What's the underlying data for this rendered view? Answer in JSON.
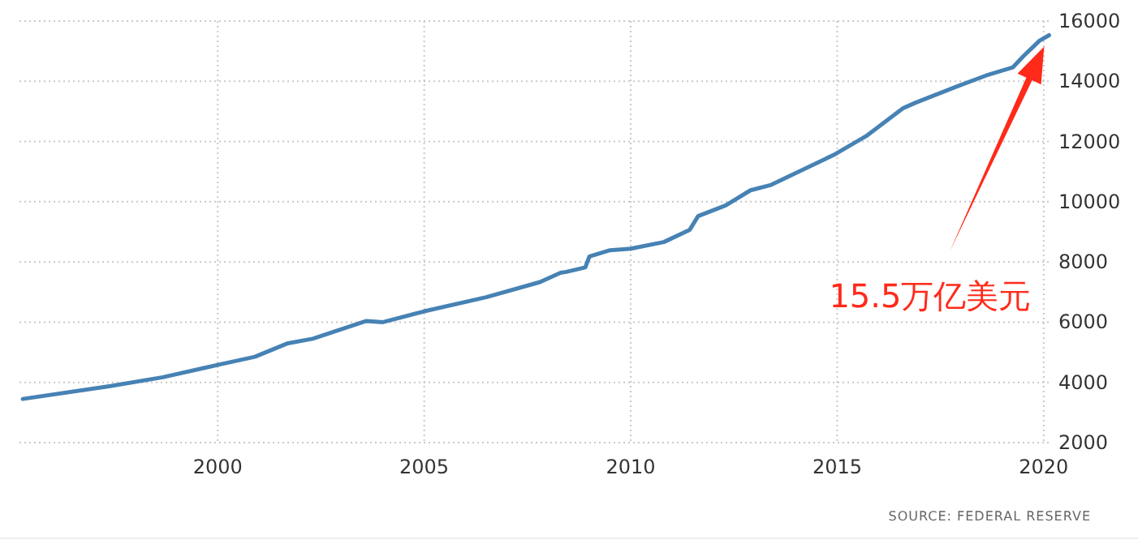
{
  "chart_data": {
    "type": "line",
    "x": [
      1995.28,
      1997.37,
      1998.67,
      2000.0,
      2000.9,
      2001.7,
      2002.3,
      2003.6,
      2004.0,
      2005.0,
      2006.5,
      2007.8,
      2008.3,
      2008.44,
      2008.9,
      2009.0,
      2009.5,
      2010.0,
      2010.8,
      2011.43,
      2011.63,
      2012.3,
      2012.9,
      2013.4,
      2014.95,
      2015.7,
      2016.6,
      2016.9,
      2017.9,
      2018.6,
      2019.25,
      2019.5,
      2019.9,
      2020.13
    ],
    "series": [
      {
        "color": "#4682b4",
        "values": [
          3450,
          3870,
          4170,
          4580,
          4850,
          5300,
          5450,
          6040,
          6000,
          6360,
          6830,
          7330,
          7640,
          7670,
          7820,
          8180,
          8390,
          8440,
          8660,
          9070,
          9520,
          9880,
          10380,
          10560,
          11580,
          12180,
          13110,
          13290,
          13830,
          14190,
          14460,
          14820,
          15350,
          15530
        ]
      }
    ],
    "xlim": [
      1995.2,
      2020.2
    ],
    "ylim": [
      2000,
      16000
    ],
    "xticks": [
      2000,
      2005,
      2010,
      2015,
      2020
    ],
    "yticks": [
      2000,
      4000,
      6000,
      8000,
      10000,
      12000,
      14000,
      16000
    ],
    "grid": true,
    "annotations": [
      "15.5万亿美元",
      "SOURCE: FEDERAL RESERVE"
    ]
  }
}
